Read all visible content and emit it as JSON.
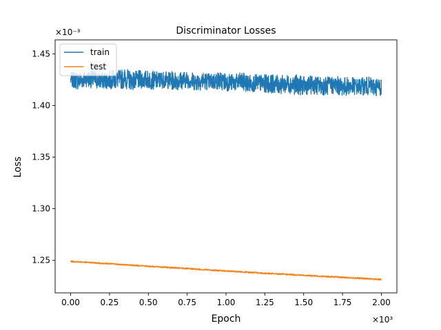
{
  "chart_data": {
    "type": "line",
    "title": "Discriminator Losses",
    "xlabel": "Epoch",
    "ylabel": "Loss",
    "x_multiplier_label": "×10³",
    "y_multiplier_label": "×10⁻³",
    "xlim": [
      -0.1,
      2.1
    ],
    "ylim": [
      1.2185,
      1.4635
    ],
    "x_ticks": [
      0.0,
      0.25,
      0.5,
      0.75,
      1.0,
      1.25,
      1.5,
      1.75,
      2.0
    ],
    "x_tick_labels": [
      "0.00",
      "0.25",
      "0.50",
      "0.75",
      "1.00",
      "1.25",
      "1.50",
      "1.75",
      "2.00"
    ],
    "y_ticks": [
      1.25,
      1.3,
      1.35,
      1.4,
      1.45
    ],
    "y_tick_labels": [
      "1.25",
      "1.30",
      "1.35",
      "1.40",
      "1.45"
    ],
    "grid": false,
    "legend_position": "top-left",
    "series": [
      {
        "name": "train",
        "color": "#1f77b4",
        "x": [
          0.0,
          0.05,
          0.1,
          0.15,
          0.2,
          0.25,
          0.3,
          0.35,
          0.4,
          0.45,
          0.5,
          0.55,
          0.6,
          0.65,
          0.7,
          0.75,
          0.8,
          0.85,
          0.9,
          0.95,
          1.0,
          1.05,
          1.1,
          1.15,
          1.2,
          1.25,
          1.3,
          1.35,
          1.4,
          1.45,
          1.5,
          1.55,
          1.6,
          1.65,
          1.7,
          1.75,
          1.8,
          1.85,
          1.9,
          1.95,
          2.0
        ],
        "y": [
          1.425,
          1.424,
          1.426,
          1.425,
          1.424,
          1.425,
          1.425,
          1.426,
          1.424,
          1.425,
          1.425,
          1.424,
          1.425,
          1.424,
          1.424,
          1.425,
          1.423,
          1.424,
          1.423,
          1.424,
          1.423,
          1.422,
          1.423,
          1.421,
          1.422,
          1.421,
          1.421,
          1.42,
          1.421,
          1.42,
          1.419,
          1.42,
          1.419,
          1.419,
          1.42,
          1.418,
          1.419,
          1.418,
          1.419,
          1.418,
          1.418
        ],
        "band": [
          0.007,
          0.009,
          0.008,
          0.009,
          0.008,
          0.009,
          0.009,
          0.01,
          0.009,
          0.009,
          0.009,
          0.009,
          0.008,
          0.009,
          0.009,
          0.008,
          0.009,
          0.009,
          0.008,
          0.009,
          0.009,
          0.008,
          0.009,
          0.009,
          0.008,
          0.009,
          0.009,
          0.009,
          0.009,
          0.01,
          0.009,
          0.009,
          0.009,
          0.009,
          0.009,
          0.009,
          0.009,
          0.008,
          0.009,
          0.009,
          0.009
        ]
      },
      {
        "name": "test",
        "color": "#ff7f0e",
        "x": [
          0.0,
          0.25,
          0.5,
          0.75,
          1.0,
          1.25,
          1.5,
          1.75,
          2.0
        ],
        "y": [
          1.249,
          1.2467,
          1.2443,
          1.242,
          1.2397,
          1.2375,
          1.2355,
          1.2335,
          1.2315
        ],
        "band": [
          0.0008,
          0.0008,
          0.0008,
          0.0008,
          0.0008,
          0.0008,
          0.0008,
          0.0008,
          0.0008
        ]
      }
    ]
  }
}
